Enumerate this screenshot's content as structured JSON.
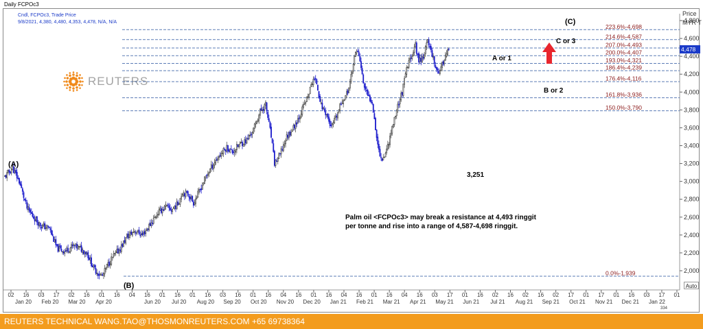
{
  "window_title": "Daily FCPOc3",
  "ohlc_line1": "Cndl, FCPOc3, Trade Price",
  "ohlc_line2": "9/8/2021, 4,380, 4,480, 4,353, 4,478, N/A, N/A",
  "logo_text": "REUTERS",
  "price_header": "Price MYR T",
  "auto_button": "Auto",
  "scroll_label": "334",
  "footer_text": "REUTERS TECHNICAL  WANG.TAO@THOSMONREUTERS.COM  +65 69738364",
  "colors": {
    "up": "#ffffff",
    "down": "#1c1ccc",
    "fib_line": "#5a7bb5",
    "fib_label": "#8b1a1a",
    "arrow": "#e8262d",
    "footer": "#f39c1e",
    "current_price": "#1a3ac8"
  },
  "chart_data": {
    "type": "candlestick",
    "ylim": [
      1800,
      5000
    ],
    "yticks": [
      "2,000",
      "2,200",
      "2,400",
      "2,600",
      "2,800",
      "3,000",
      "3,200",
      "3,400",
      "3,600",
      "3,800",
      "4,000",
      "4,200",
      "4,400",
      "4,600",
      "4,800"
    ],
    "x_day_ticks": [
      "02",
      "16",
      "03",
      "17",
      "02",
      "16",
      "01",
      "16",
      "04",
      "16",
      "01",
      "16",
      "01",
      "16",
      "03",
      "16",
      "01",
      "16",
      "04",
      "16",
      "01",
      "16",
      "04",
      "16",
      "01",
      "16",
      "04",
      "16",
      "03",
      "17",
      "01",
      "16",
      "02",
      "16",
      "02",
      "16",
      "02",
      "17",
      "01",
      "17",
      "01",
      "16",
      "03",
      "17",
      "01"
    ],
    "x_month_labels": [
      "Jan 20",
      "Feb 20",
      "Mar 20",
      "Apr 20",
      "Jun 20",
      "Jul 20",
      "Aug 20",
      "Sep 20",
      "Oct 20",
      "Nov 20",
      "Dec 20",
      "Jan 21",
      "Feb 21",
      "Mar 21",
      "Apr 21",
      "May 21",
      "Jun 21",
      "Jul 21",
      "Aug 21",
      "Sep 21",
      "Oct 21",
      "Nov 21",
      "Dec 21",
      "Jan 22"
    ],
    "fib_levels": [
      {
        "label": "223.6%-4,698",
        "value": 4698
      },
      {
        "label": "214.6%-4,587",
        "value": 4587
      },
      {
        "label": "207.0%-4,493",
        "value": 4493
      },
      {
        "label": "200.0%-4,407",
        "value": 4407
      },
      {
        "label": "193.0%-4,321",
        "value": 4321
      },
      {
        "label": "186.4%-4,239",
        "value": 4239
      },
      {
        "label": "176.4%-4,116",
        "value": 4116
      },
      {
        "label": "161.8%-3,936",
        "value": 3936
      },
      {
        "label": "150.0%-3,790",
        "value": 3790
      },
      {
        "label": "0.0%-1,939",
        "value": 1939
      }
    ],
    "current_price": "4,478",
    "wave_labels": {
      "a": "(A)",
      "b": "(B)",
      "c": "(C)",
      "a_or_1": "A or 1",
      "b_or_2": "B or 2",
      "c_or_3": "C or 3",
      "low": "3,251"
    },
    "annotation_line1": "Palm oil <FCPOc3> may break a resistance at 4,493 ringgit",
    "annotation_line2": "per tonne and rise into a range of 4,587-4,698 ringgit.",
    "anchors": [
      [
        0,
        3050
      ],
      [
        7,
        3150
      ],
      [
        13,
        3000
      ],
      [
        20,
        2700
      ],
      [
        26,
        2600
      ],
      [
        33,
        2500
      ],
      [
        40,
        2480
      ],
      [
        47,
        2250
      ],
      [
        54,
        2220
      ],
      [
        62,
        2280
      ],
      [
        68,
        2250
      ],
      [
        74,
        2200
      ],
      [
        80,
        2030
      ],
      [
        85,
        1960
      ],
      [
        88,
        1939
      ],
      [
        92,
        2050
      ],
      [
        97,
        2150
      ],
      [
        104,
        2250
      ],
      [
        110,
        2380
      ],
      [
        117,
        2450
      ],
      [
        124,
        2400
      ],
      [
        131,
        2520
      ],
      [
        138,
        2650
      ],
      [
        145,
        2720
      ],
      [
        150,
        2680
      ],
      [
        156,
        2750
      ],
      [
        160,
        2880
      ],
      [
        166,
        2850
      ],
      [
        170,
        2760
      ],
      [
        175,
        2880
      ],
      [
        181,
        3050
      ],
      [
        188,
        3200
      ],
      [
        194,
        3300
      ],
      [
        200,
        3380
      ],
      [
        205,
        3330
      ],
      [
        212,
        3420
      ],
      [
        218,
        3460
      ],
      [
        224,
        3580
      ],
      [
        230,
        3780
      ],
      [
        235,
        3860
      ],
      [
        240,
        3500
      ],
      [
        243,
        3200
      ],
      [
        248,
        3300
      ],
      [
        254,
        3500
      ],
      [
        260,
        3600
      ],
      [
        266,
        3750
      ],
      [
        273,
        3950
      ],
      [
        278,
        4150
      ],
      [
        281,
        4100
      ],
      [
        285,
        3850
      ],
      [
        290,
        3750
      ],
      [
        294,
        3600
      ],
      [
        298,
        3700
      ],
      [
        304,
        3900
      ],
      [
        309,
        4000
      ],
      [
        313,
        4250
      ],
      [
        317,
        4490
      ],
      [
        320,
        4350
      ],
      [
        323,
        4100
      ],
      [
        327,
        3950
      ],
      [
        331,
        3900
      ],
      [
        335,
        3500
      ],
      [
        338,
        3280
      ],
      [
        341,
        3251
      ],
      [
        345,
        3400
      ],
      [
        349,
        3600
      ],
      [
        354,
        3850
      ],
      [
        358,
        4000
      ],
      [
        362,
        4250
      ],
      [
        366,
        4400
      ],
      [
        370,
        4520
      ],
      [
        373,
        4350
      ],
      [
        377,
        4400
      ],
      [
        381,
        4570
      ],
      [
        385,
        4430
      ],
      [
        388,
        4280
      ],
      [
        392,
        4220
      ],
      [
        396,
        4380
      ],
      [
        400,
        4478
      ]
    ]
  }
}
